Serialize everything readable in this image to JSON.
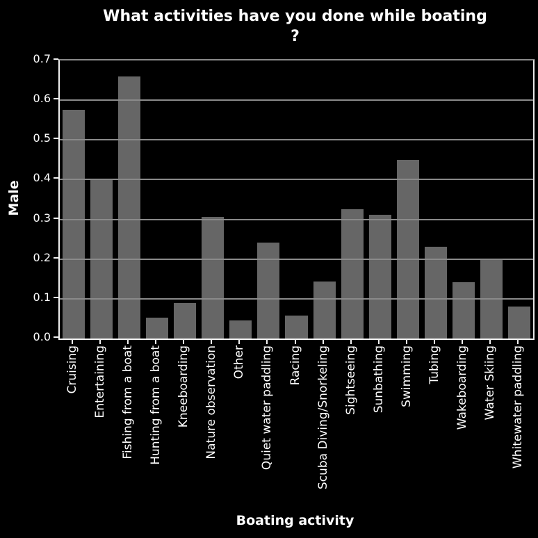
{
  "chart_data": {
    "type": "bar",
    "title": "What activities have you done while boating ?",
    "title_lines": [
      "What activities have you done while boating",
      "?"
    ],
    "xlabel": "Boating activity",
    "ylabel": "Male",
    "categories": [
      "Cruising",
      "Entertaining",
      "Fishing from a boat",
      "Hunting from a boat",
      "Kneeboarding",
      "Nature observation",
      "Other",
      "Quiet water paddling",
      "Racing",
      "Scuba Diving/Snorkeling",
      "Sightseeing",
      "Sunbathing",
      "Swimming",
      "Tubing",
      "Wakeboarding",
      "Water Skiing",
      "Whitewater paddling"
    ],
    "values": [
      0.575,
      0.4,
      0.66,
      0.052,
      0.09,
      0.307,
      0.045,
      0.242,
      0.058,
      0.143,
      0.325,
      0.311,
      0.45,
      0.231,
      0.141,
      0.199,
      0.081
    ],
    "ylim": [
      0.0,
      0.7
    ],
    "ytick_labels": [
      "0.0",
      "0.1",
      "0.2",
      "0.3",
      "0.4",
      "0.5",
      "0.6",
      "0.7"
    ],
    "grid": "horizontal",
    "legend": "none",
    "colors": {
      "background": "#000000",
      "bar": "#666666",
      "grid": "#8a8a8a",
      "axis": "#f2f2f2",
      "text": "#ffffff"
    }
  }
}
